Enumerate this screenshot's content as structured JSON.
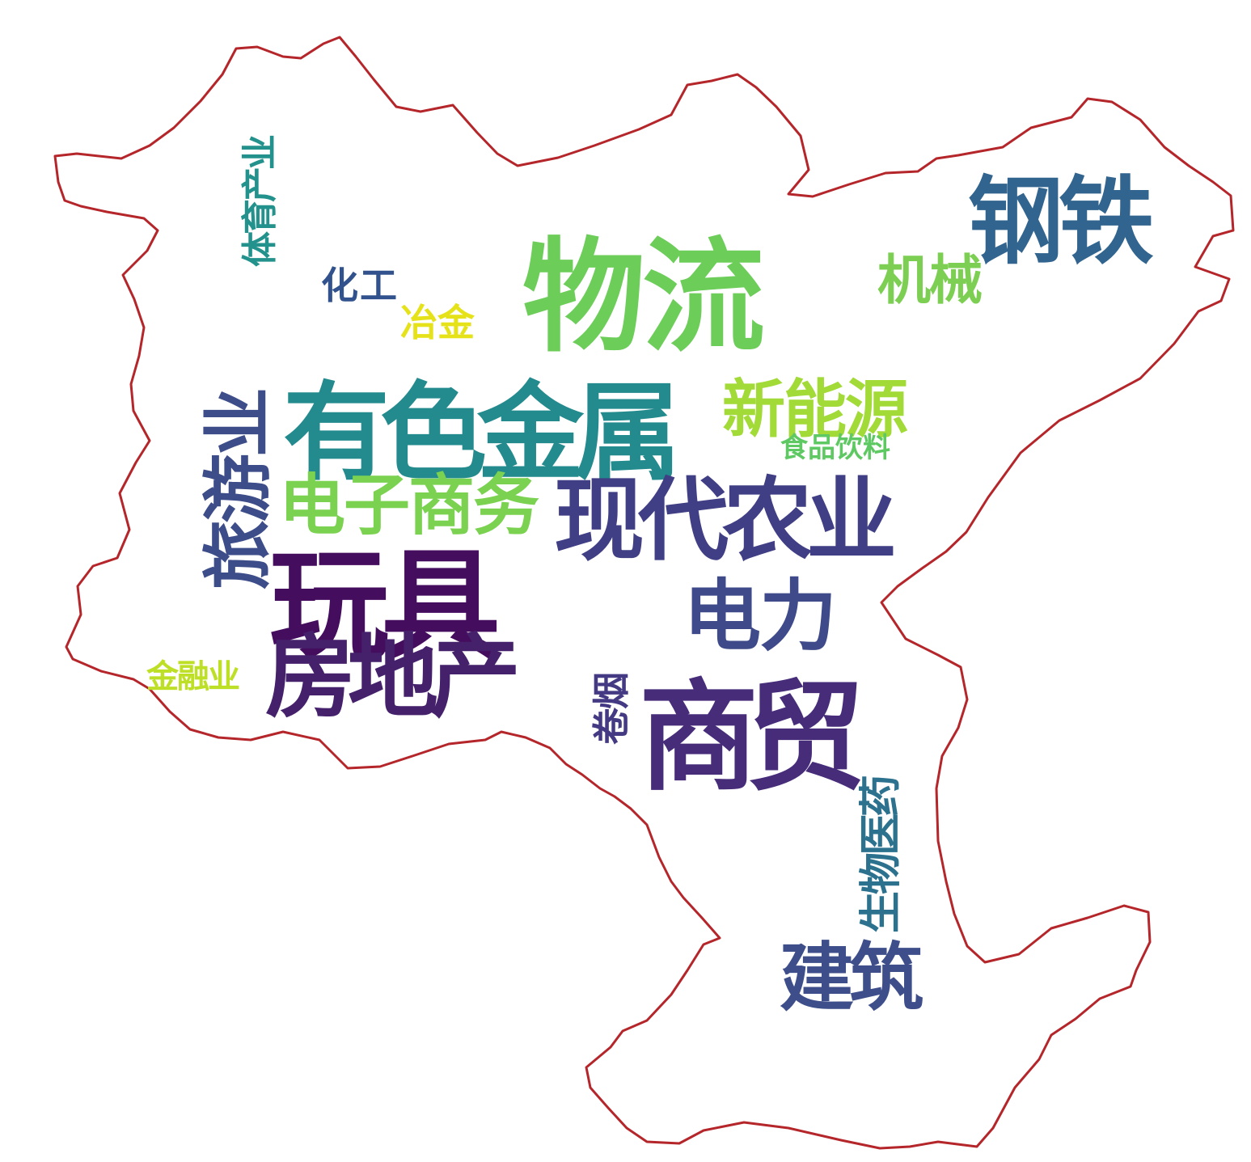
{
  "outline_color": "#b5262b",
  "words": [
    {
      "id": "wuliu",
      "text": "物流",
      "color": "#6ccd59"
    },
    {
      "id": "gangtie",
      "text": "钢铁",
      "color": "#31648e"
    },
    {
      "id": "youse",
      "text": "有色金属",
      "color": "#238a8d"
    },
    {
      "id": "xiandai",
      "text": "现代农业",
      "color": "#403e84"
    },
    {
      "id": "wanju",
      "text": "玩具",
      "color": "#450d5e"
    },
    {
      "id": "shangmao",
      "text": "商贸",
      "color": "#472c7a"
    },
    {
      "id": "fangdichan",
      "text": "房地产",
      "color": "#45216c"
    },
    {
      "id": "dianzi",
      "text": "电子商务",
      "color": "#7ad250"
    },
    {
      "id": "xinnengyuan",
      "text": "新能源",
      "color": "#a2da37"
    },
    {
      "id": "lvyou",
      "text": "旅游业",
      "color": "#3d4d89"
    },
    {
      "id": "dianli",
      "text": "电力",
      "color": "#3e4a89"
    },
    {
      "id": "jianzhu",
      "text": "建筑",
      "color": "#3d4e8a"
    },
    {
      "id": "jixie",
      "text": "机械",
      "color": "#7ccf52"
    },
    {
      "id": "huagong",
      "text": "化工",
      "color": "#31528c"
    },
    {
      "id": "yejin",
      "text": "冶金",
      "color": "#e5e21a"
    },
    {
      "id": "tiyu",
      "text": "体育产业",
      "color": "#23928c"
    },
    {
      "id": "shipin",
      "text": "食品饮料",
      "color": "#5ec962"
    },
    {
      "id": "jinrong",
      "text": "金融业",
      "color": "#bddf26"
    },
    {
      "id": "juanyan",
      "text": "卷烟",
      "color": "#443a83"
    },
    {
      "id": "shengwu",
      "text": "生物医药",
      "color": "#2c728e"
    }
  ]
}
